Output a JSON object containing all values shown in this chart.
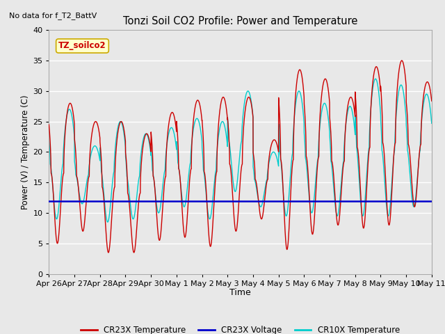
{
  "title": "Tonzi Soil CO2 Profile: Power and Temperature",
  "subtitle": "No data for f_T2_BattV",
  "xlabel": "Time",
  "ylabel": "Power (V) / Temperature (C)",
  "ylim": [
    0,
    40
  ],
  "yticks": [
    0,
    5,
    10,
    15,
    20,
    25,
    30,
    35,
    40
  ],
  "x_tick_labels": [
    "Apr 26",
    "Apr 27",
    "Apr 28",
    "Apr 29",
    "Apr 30",
    "May 1",
    "May 2",
    "May 3",
    "May 4",
    "May 5",
    "May 6",
    "May 7",
    "May 8",
    "May 9",
    "May 10",
    "May 11"
  ],
  "fig_bg_color": "#e8e8e8",
  "plot_bg_color": "#e8e8e8",
  "cr23x_color": "#cc0000",
  "cr10x_color": "#00cccc",
  "voltage_color": "#0000cc",
  "voltage_value": 11.9,
  "legend_label_cr23x": "CR23X Temperature",
  "legend_label_voltage": "CR23X Voltage",
  "legend_label_cr10x": "CR10X Temperature",
  "annotation_box_text": "TZ_soilco2",
  "annotation_box_bg": "#ffffcc",
  "annotation_box_border": "#ccaa00",
  "cr23x_peaks": [
    28,
    25,
    25,
    23,
    26.5,
    28.5,
    29,
    29,
    22,
    33.5,
    32,
    29,
    34,
    35,
    31.5
  ],
  "cr23x_troughs": [
    5,
    7,
    3.5,
    3.5,
    5.5,
    6,
    4.5,
    7,
    9,
    4,
    6.5,
    8,
    7.5,
    8,
    11
  ],
  "cr10x_peaks": [
    27,
    21,
    25,
    23,
    24,
    25.5,
    25,
    30,
    20,
    30,
    28,
    27.5,
    32,
    31,
    29.5
  ],
  "cr10x_troughs": [
    9,
    11.5,
    8.5,
    9,
    10,
    11,
    9,
    13.5,
    11,
    9.5,
    10,
    9.5,
    9.5,
    9.5,
    11
  ]
}
